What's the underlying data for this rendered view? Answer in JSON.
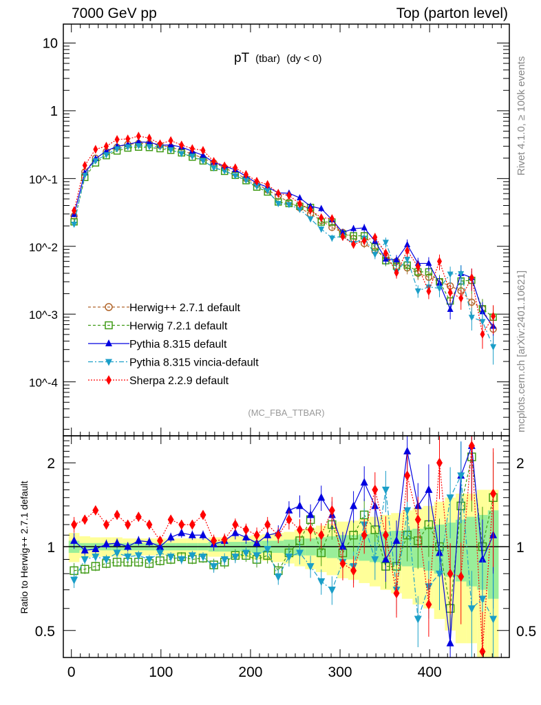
{
  "header": {
    "left": "7000 GeV pp",
    "right": "Top (parton level)"
  },
  "side": {
    "rivet": "Rivet 4.1.0, ≥ 100k events",
    "mcplots": "mcplots.cern.ch [arXiv:2401.10621]"
  },
  "analysis": "(MC_FBA_TTBAR)",
  "chart_data": {
    "type": "scatter",
    "title_main": "pT",
    "title_sub": "(tbar)",
    "title_cond": "(dy < 0)",
    "xlabel": "",
    "ylabel": "",
    "ratio_ylabel": "Ratio to Herwig++ 2.7.1 default",
    "xlim": [
      -9,
      489
    ],
    "ylim": [
      1.6e-05,
      19
    ],
    "yscale": "log",
    "ratio_ylim": [
      0.4,
      2.5
    ],
    "x_ticks": [
      "0",
      "100",
      "200",
      "300",
      "400"
    ],
    "y_ticks": [
      "10",
      "1",
      "10^-1",
      "10^-2",
      "10^-3",
      "10^-4"
    ],
    "ratio_ticks": [
      "0.5",
      "1",
      "2"
    ],
    "legend_position": "bottom-left",
    "x": [
      3,
      15,
      27,
      39,
      51,
      63,
      75,
      87,
      99,
      111,
      123,
      135,
      147,
      159,
      171,
      183,
      195,
      207,
      219,
      231,
      243,
      255,
      267,
      279,
      291,
      303,
      315,
      327,
      339,
      351,
      363,
      375,
      387,
      399,
      411,
      423,
      435,
      447,
      459,
      471
    ],
    "reference": {
      "name": "Herwig++ 2.7.1 default",
      "values": [
        0.028,
        0.125,
        0.2,
        0.25,
        0.29,
        0.32,
        0.33,
        0.33,
        0.31,
        0.29,
        0.26,
        0.23,
        0.2,
        0.17,
        0.145,
        0.12,
        0.1,
        0.083,
        0.068,
        0.055,
        0.045,
        0.037,
        0.03,
        0.024,
        0.019,
        0.016,
        0.013,
        0.011,
        0.0085,
        0.0072,
        0.006,
        0.0048,
        0.004,
        0.0035,
        0.003,
        0.0026,
        0.0022,
        0.0015,
        0.0012,
        0.0006
      ],
      "rel_unc_stat": [
        0.05,
        0.03,
        0.03,
        0.03,
        0.03,
        0.03,
        0.03,
        0.03,
        0.03,
        0.03,
        0.03,
        0.03,
        0.03,
        0.04,
        0.04,
        0.04,
        0.04,
        0.05,
        0.05,
        0.05,
        0.06,
        0.07,
        0.07,
        0.08,
        0.09,
        0.1,
        0.1,
        0.11,
        0.12,
        0.13,
        0.14,
        0.15,
        0.16,
        0.18,
        0.2,
        0.22,
        0.25,
        0.28,
        0.3,
        0.35
      ],
      "rel_unc_total": [
        0.12,
        0.09,
        0.08,
        0.08,
        0.08,
        0.07,
        0.07,
        0.07,
        0.07,
        0.07,
        0.07,
        0.07,
        0.07,
        0.08,
        0.08,
        0.09,
        0.09,
        0.1,
        0.11,
        0.12,
        0.13,
        0.15,
        0.17,
        0.19,
        0.21,
        0.23,
        0.24,
        0.26,
        0.28,
        0.3,
        0.32,
        0.35,
        0.38,
        0.4,
        0.45,
        0.5,
        0.55,
        0.55,
        0.6,
        0.6
      ]
    },
    "series": [
      {
        "name": "Herwig++ 2.7.1 default",
        "color": "#b0652a",
        "marker": "open-circle",
        "line": "dashed",
        "ratio": [
          1,
          1,
          1,
          1,
          1,
          1,
          1,
          1,
          1,
          1,
          1,
          1,
          1,
          1,
          1,
          1,
          1,
          1,
          1,
          1,
          1,
          1,
          1,
          1,
          1,
          1,
          1,
          1,
          1,
          1,
          1,
          1,
          1,
          1,
          1,
          1,
          1,
          1,
          1,
          1
        ]
      },
      {
        "name": "Herwig 7.2.1 default",
        "color": "#3f9a14",
        "marker": "open-square",
        "line": "dashed",
        "ratio": [
          0.82,
          0.83,
          0.85,
          0.87,
          0.88,
          0.88,
          0.88,
          0.87,
          0.89,
          0.9,
          0.92,
          0.9,
          0.91,
          0.86,
          0.88,
          0.93,
          0.93,
          0.9,
          0.93,
          0.82,
          0.95,
          1.05,
          1.25,
          0.95,
          1.2,
          0.95,
          1.1,
          1.3,
          1.15,
          0.85,
          0.85,
          1.1,
          1.05,
          1.2,
          1.0,
          0.6,
          1.4,
          2.1,
          1.0,
          1.5
        ]
      },
      {
        "name": "Pythia 8.315 default",
        "color": "#0000e0",
        "marker": "triangle-up",
        "line": "solid",
        "ratio": [
          1.05,
          0.97,
          0.98,
          1.02,
          1.03,
          1.0,
          1.05,
          1.04,
          1.0,
          1.08,
          1.12,
          1.1,
          1.1,
          1.02,
          1.05,
          1.12,
          1.08,
          1.03,
          1.1,
          1.12,
          1.35,
          1.4,
          1.3,
          1.5,
          1.3,
          1.0,
          1.4,
          1.7,
          1.4,
          0.9,
          1.05,
          2.2,
          1.4,
          1.6,
          0.95,
          0.45,
          1.8,
          2.3,
          0.9,
          1.1
        ]
      },
      {
        "name": "Pythia 8.315 vincia-default",
        "color": "#1a9ec8",
        "marker": "triangle-down",
        "line": "dashdot",
        "ratio": [
          0.76,
          0.9,
          0.92,
          0.9,
          0.95,
          0.92,
          0.93,
          0.9,
          0.95,
          0.92,
          0.9,
          0.93,
          0.92,
          0.85,
          0.9,
          0.92,
          0.95,
          0.93,
          0.98,
          0.78,
          0.92,
          0.95,
          0.85,
          0.75,
          0.7,
          0.88,
          0.85,
          1.2,
          0.9,
          1.6,
          0.7,
          1.35,
          0.55,
          0.72,
          0.8,
          1.5,
          1.8,
          0.6,
          0.65,
          0.55
        ]
      },
      {
        "name": "Sherpa 2.2.9 default",
        "color": "#ff0000",
        "marker": "diamond",
        "line": "dotted",
        "ratio": [
          1.2,
          1.25,
          1.35,
          1.2,
          1.3,
          1.2,
          1.28,
          1.2,
          1.05,
          1.25,
          1.2,
          1.2,
          1.3,
          1.05,
          1.06,
          1.2,
          1.15,
          1.1,
          1.2,
          1.1,
          1.25,
          1.15,
          1.15,
          1.1,
          1.35,
          0.87,
          0.82,
          1.1,
          1.6,
          1.1,
          0.68,
          1.8,
          1.25,
          0.62,
          2.0,
          0.8,
          0.78,
          2.3,
          0.42,
          1.55
        ]
      }
    ]
  }
}
